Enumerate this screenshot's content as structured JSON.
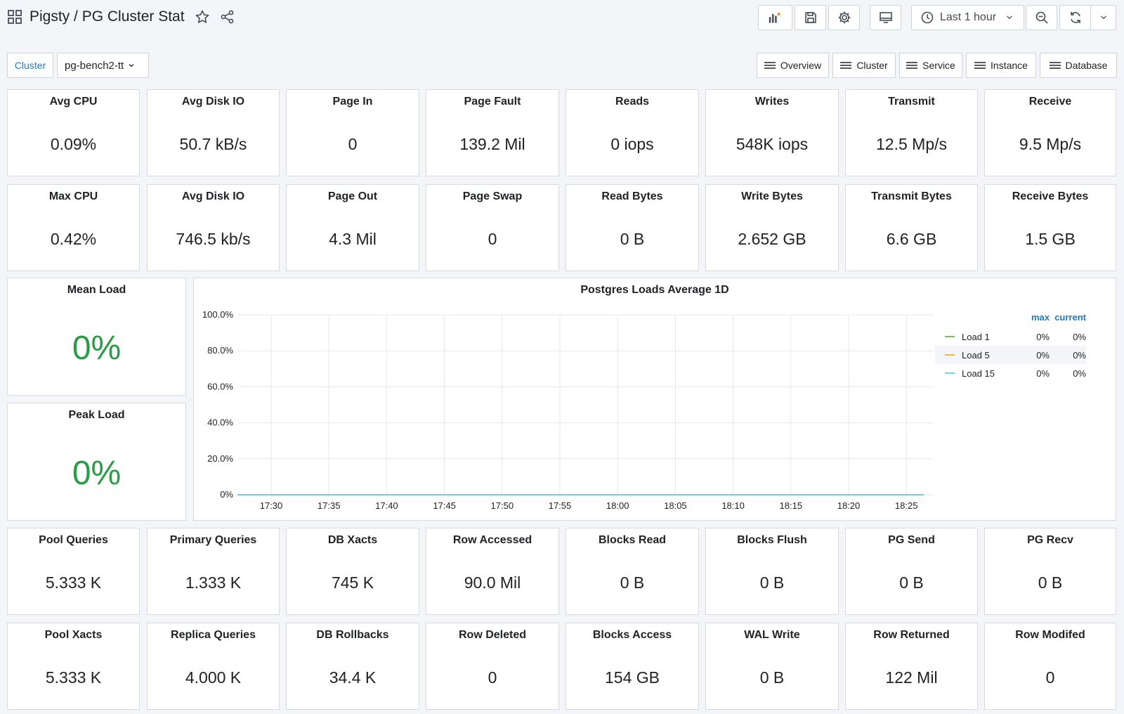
{
  "header": {
    "title": "Pigsty / PG Cluster Stat",
    "time_range": "Last 1 hour"
  },
  "variables": {
    "label": "Cluster",
    "value": "pg-bench2-tt"
  },
  "nav_links": [
    "Overview",
    "Cluster",
    "Service",
    "Instance",
    "Database"
  ],
  "stats_row1": [
    {
      "title": "Avg CPU",
      "value": "0.09%"
    },
    {
      "title": "Avg Disk IO",
      "value": "50.7 kB/s"
    },
    {
      "title": "Page In",
      "value": "0"
    },
    {
      "title": "Page Fault",
      "value": "139.2 Mil"
    },
    {
      "title": "Reads",
      "value": "0 iops"
    },
    {
      "title": "Writes",
      "value": "548K iops"
    },
    {
      "title": "Transmit",
      "value": "12.5 Mp/s"
    },
    {
      "title": "Receive",
      "value": "9.5 Mp/s"
    }
  ],
  "stats_row2": [
    {
      "title": "Max CPU",
      "value": "0.42%"
    },
    {
      "title": "Avg Disk IO",
      "value": "746.5 kb/s"
    },
    {
      "title": "Page Out",
      "value": "4.3 Mil"
    },
    {
      "title": "Page Swap",
      "value": "0"
    },
    {
      "title": "Read Bytes",
      "value": "0 B"
    },
    {
      "title": "Write Bytes",
      "value": "2.652 GB"
    },
    {
      "title": "Transmit Bytes",
      "value": "6.6 GB"
    },
    {
      "title": "Receive Bytes",
      "value": "1.5 GB"
    }
  ],
  "load_panels": {
    "mean": {
      "title": "Mean Load",
      "value": "0%"
    },
    "peak": {
      "title": "Peak Load",
      "value": "0%"
    }
  },
  "stats_row3": [
    {
      "title": "Pool Queries",
      "value": "5.333 K"
    },
    {
      "title": "Primary Queries",
      "value": "1.333 K"
    },
    {
      "title": "DB Xacts",
      "value": "745 K"
    },
    {
      "title": "Row Accessed",
      "value": "90.0 Mil"
    },
    {
      "title": "Blocks Read",
      "value": "0 B"
    },
    {
      "title": "Blocks Flush",
      "value": "0 B"
    },
    {
      "title": "PG Send",
      "value": "0 B"
    },
    {
      "title": "PG Recv",
      "value": "0 B"
    }
  ],
  "stats_row4": [
    {
      "title": "Pool Xacts",
      "value": "5.333 K"
    },
    {
      "title": "Replica Queries",
      "value": "4.000 K"
    },
    {
      "title": "DB Rollbacks",
      "value": "34.4 K"
    },
    {
      "title": "Row Deleted",
      "value": "0"
    },
    {
      "title": "Blocks Access",
      "value": "154 GB"
    },
    {
      "title": "WAL Write",
      "value": "0 B"
    },
    {
      "title": "Row Returned",
      "value": "122 Mil"
    },
    {
      "title": "Row Modifed",
      "value": "0"
    }
  ],
  "chart_data": {
    "type": "line",
    "title": "Postgres Loads Average 1D",
    "x": [
      "17:30",
      "17:35",
      "17:40",
      "17:45",
      "17:50",
      "17:55",
      "18:00",
      "18:05",
      "18:10",
      "18:15",
      "18:20",
      "18:25"
    ],
    "y_ticks": [
      "100.0%",
      "80.0%",
      "60.0%",
      "40.0%",
      "20.0%",
      "0%"
    ],
    "ylim": [
      0,
      100
    ],
    "grid": true,
    "legend_placement": "right",
    "legend_headers": {
      "max": "max",
      "current": "current"
    },
    "series": [
      {
        "name": "Load 1",
        "color": "#7eb26d",
        "max": "0%",
        "current": "0%",
        "values": [
          0,
          0,
          0,
          0,
          0,
          0,
          0,
          0,
          0,
          0,
          0,
          0
        ]
      },
      {
        "name": "Load 5",
        "color": "#eab839",
        "max": "0%",
        "current": "0%",
        "values": [
          0,
          0,
          0,
          0,
          0,
          0,
          0,
          0,
          0,
          0,
          0,
          0
        ]
      },
      {
        "name": "Load 15",
        "color": "#6ed0e0",
        "max": "0%",
        "current": "0%",
        "values": [
          0,
          0,
          0,
          0,
          0,
          0,
          0,
          0,
          0,
          0,
          0,
          0
        ]
      }
    ]
  },
  "colors": {
    "accent": "#1f78c1",
    "stat_ok": "#299c46"
  },
  "icons": [
    "apps-icon",
    "star-icon",
    "share-icon",
    "add-panel-icon",
    "save-icon",
    "gear-icon",
    "tv-icon",
    "clock-icon",
    "chevron-down-icon",
    "zoom-out-icon",
    "refresh-icon",
    "menu-icon"
  ]
}
